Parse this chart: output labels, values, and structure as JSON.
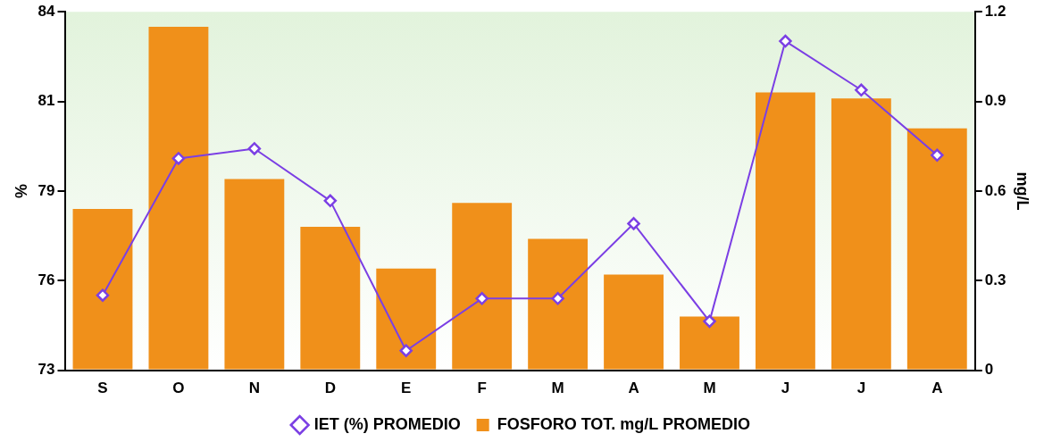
{
  "chart_data": {
    "type": "bar",
    "categories": [
      "S",
      "O",
      "N",
      "D",
      "E",
      "F",
      "M",
      "A",
      "M",
      "J",
      "J",
      "A"
    ],
    "series": [
      {
        "name": "IET (%) PROMEDIO",
        "type": "line",
        "color": "#7b3fe4",
        "marker": "diamond",
        "values": [
          75.3,
          79.5,
          79.8,
          78.2,
          73.6,
          75.2,
          75.2,
          77.5,
          74.5,
          83.1,
          81.6,
          79.6
        ]
      },
      {
        "name": "FOSFORO TOT. mg/L PROMEDIO",
        "axis": "y2",
        "color": "#f0901a",
        "values": [
          0.54,
          1.15,
          0.64,
          0.48,
          0.34,
          0.56,
          0.44,
          0.32,
          0.18,
          0.93,
          0.91,
          0.81
        ]
      }
    ],
    "ylabel": "%",
    "y2label": "mg/L",
    "ylim": [
      73,
      84
    ],
    "yticks": [
      73,
      {
        "value": 75.75,
        "label": "76"
      },
      {
        "value": 78.5,
        "label": "79"
      },
      {
        "value": 81.25,
        "label": "81"
      },
      84
    ],
    "y2lim": [
      0,
      1.2
    ],
    "y2ticks": [
      0,
      0.3,
      0.6,
      0.9,
      1.2
    ],
    "legend": "bottom"
  }
}
